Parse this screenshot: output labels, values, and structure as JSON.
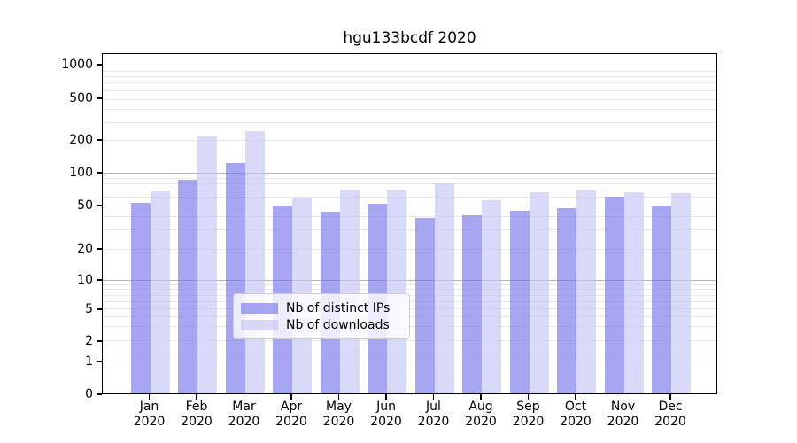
{
  "title": "hgu133bcdf 2020",
  "chart_data": {
    "type": "bar",
    "title": "hgu133bcdf 2020",
    "categories": [
      "Jan",
      "Feb",
      "Mar",
      "Apr",
      "May",
      "Jun",
      "Jul",
      "Aug",
      "Sep",
      "Oct",
      "Nov",
      "Dec"
    ],
    "category_year": "2020",
    "series": [
      {
        "name": "Nb of distinct IPs",
        "color": "#7676eb",
        "alpha": 0.65,
        "values": [
          52,
          85,
          120,
          49,
          43,
          51,
          38,
          40,
          44,
          46,
          59,
          49
        ]
      },
      {
        "name": "Nb of downloads",
        "color": "#c4c4f4",
        "alpha": 0.65,
        "values": [
          66,
          210,
          240,
          58,
          69,
          68,
          78,
          55,
          65,
          69,
          65,
          64
        ]
      }
    ],
    "yticks": [
      0,
      1,
      2,
      5,
      10,
      20,
      50,
      100,
      200,
      500,
      1000
    ],
    "ylim": [
      0,
      1000
    ],
    "yscale": "log-like",
    "xlabel": "",
    "ylabel": "",
    "grid": true,
    "major_grid_color": "#b3b3b3",
    "minor_grid_color": "#e8e8e8",
    "legend_position": "bottom-center"
  }
}
